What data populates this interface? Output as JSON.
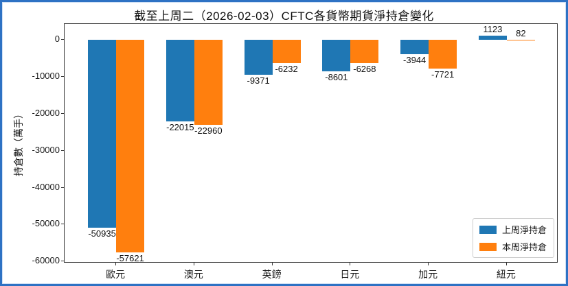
{
  "figure": {
    "border_color": "#2e72c4",
    "background": "#ffffff"
  },
  "chart_data": {
    "type": "bar",
    "title": "截至上周二（2026-02-03）CFTC各貨幣期貨淨持倉變化",
    "ylabel": "持倉數（萬手）",
    "xlabel": "",
    "categories": [
      "歐元",
      "澳元",
      "英鎊",
      "日元",
      "加元",
      "紐元"
    ],
    "series": [
      {
        "name": "上周淨持倉",
        "color": "#1f77b4",
        "values": [
          -50935,
          -22015,
          -9371,
          -8601,
          -3944,
          1123
        ]
      },
      {
        "name": "本周淨持倉",
        "color": "#ff7f0e",
        "values": [
          -57621,
          -22960,
          -6232,
          -6268,
          -7721,
          82
        ]
      }
    ],
    "yticks": [
      0,
      -10000,
      -20000,
      -30000,
      -40000,
      -50000,
      -60000
    ],
    "ylim": [
      -60500,
      4300
    ],
    "xlim": [
      -0.66,
      5.66
    ],
    "bar_width": 0.36,
    "legend_position": "lower right",
    "grid": false
  }
}
